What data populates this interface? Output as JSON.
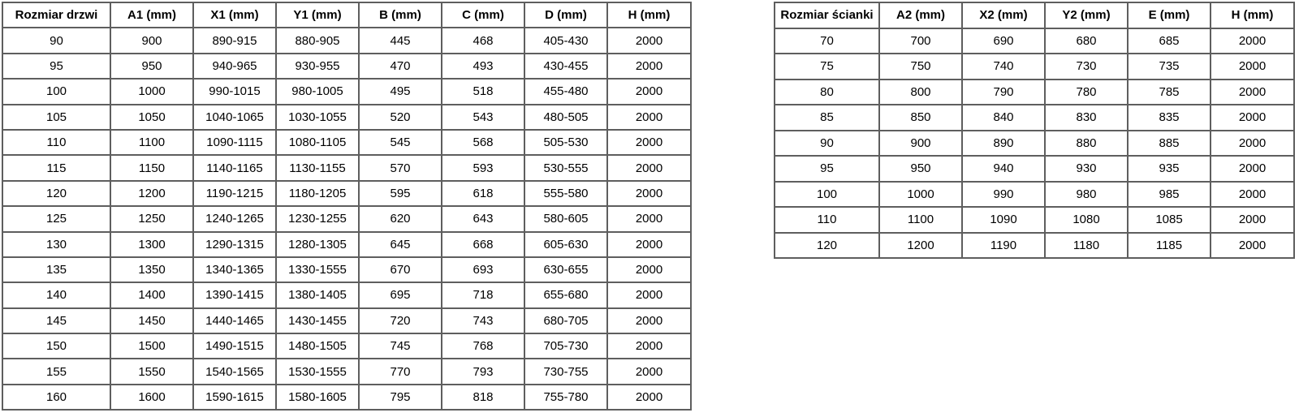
{
  "page": {
    "background_color": "#ffffff",
    "border_color": "#5e5e5e",
    "text_color": "#000000"
  },
  "door_table": {
    "headers": [
      "Rozmiar drzwi",
      "A1 (mm)",
      "X1 (mm)",
      "Y1 (mm)",
      "B (mm)",
      "C (mm)",
      "D (mm)",
      "H (mm)"
    ],
    "rows": [
      [
        "90",
        "900",
        "890-915",
        "880-905",
        "445",
        "468",
        "405-430",
        "2000"
      ],
      [
        "95",
        "950",
        "940-965",
        "930-955",
        "470",
        "493",
        "430-455",
        "2000"
      ],
      [
        "100",
        "1000",
        "990-1015",
        "980-1005",
        "495",
        "518",
        "455-480",
        "2000"
      ],
      [
        "105",
        "1050",
        "1040-1065",
        "1030-1055",
        "520",
        "543",
        "480-505",
        "2000"
      ],
      [
        "110",
        "1100",
        "1090-1115",
        "1080-1105",
        "545",
        "568",
        "505-530",
        "2000"
      ],
      [
        "115",
        "1150",
        "1140-1165",
        "1130-1155",
        "570",
        "593",
        "530-555",
        "2000"
      ],
      [
        "120",
        "1200",
        "1190-1215",
        "1180-1205",
        "595",
        "618",
        "555-580",
        "2000"
      ],
      [
        "125",
        "1250",
        "1240-1265",
        "1230-1255",
        "620",
        "643",
        "580-605",
        "2000"
      ],
      [
        "130",
        "1300",
        "1290-1315",
        "1280-1305",
        "645",
        "668",
        "605-630",
        "2000"
      ],
      [
        "135",
        "1350",
        "1340-1365",
        "1330-1555",
        "670",
        "693",
        "630-655",
        "2000"
      ],
      [
        "140",
        "1400",
        "1390-1415",
        "1380-1405",
        "695",
        "718",
        "655-680",
        "2000"
      ],
      [
        "145",
        "1450",
        "1440-1465",
        "1430-1455",
        "720",
        "743",
        "680-705",
        "2000"
      ],
      [
        "150",
        "1500",
        "1490-1515",
        "1480-1505",
        "745",
        "768",
        "705-730",
        "2000"
      ],
      [
        "155",
        "1550",
        "1540-1565",
        "1530-1555",
        "770",
        "793",
        "730-755",
        "2000"
      ],
      [
        "160",
        "1600",
        "1590-1615",
        "1580-1605",
        "795",
        "818",
        "755-780",
        "2000"
      ]
    ]
  },
  "wall_table": {
    "headers": [
      "Rozmiar ścianki",
      "A2 (mm)",
      "X2 (mm)",
      "Y2 (mm)",
      "E (mm)",
      "H (mm)"
    ],
    "rows": [
      [
        "70",
        "700",
        "690",
        "680",
        "685",
        "2000"
      ],
      [
        "75",
        "750",
        "740",
        "730",
        "735",
        "2000"
      ],
      [
        "80",
        "800",
        "790",
        "780",
        "785",
        "2000"
      ],
      [
        "85",
        "850",
        "840",
        "830",
        "835",
        "2000"
      ],
      [
        "90",
        "900",
        "890",
        "880",
        "885",
        "2000"
      ],
      [
        "95",
        "950",
        "940",
        "930",
        "935",
        "2000"
      ],
      [
        "100",
        "1000",
        "990",
        "980",
        "985",
        "2000"
      ],
      [
        "110",
        "1100",
        "1090",
        "1080",
        "1085",
        "2000"
      ],
      [
        "120",
        "1200",
        "1190",
        "1180",
        "1185",
        "2000"
      ]
    ]
  }
}
